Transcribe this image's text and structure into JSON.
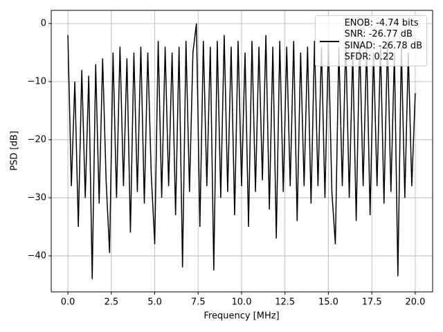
{
  "chart_data": {
    "type": "line",
    "xlabel": "Frequency [MHz]",
    "ylabel": "PSD [dB]",
    "x": [
      0,
      0.2,
      0.4,
      0.6,
      0.8,
      1.0,
      1.2,
      1.4,
      1.6,
      1.8,
      2.0,
      2.2,
      2.4,
      2.6,
      2.8,
      3.0,
      3.2,
      3.4,
      3.6,
      3.8,
      4.0,
      4.2,
      4.4,
      4.6,
      4.8,
      5.0,
      5.2,
      5.4,
      5.6,
      5.8,
      6.0,
      6.2,
      6.4,
      6.6,
      6.8,
      7.0,
      7.2,
      7.4,
      7.6,
      7.8,
      8.0,
      8.2,
      8.4,
      8.6,
      8.8,
      9.0,
      9.2,
      9.4,
      9.6,
      9.8,
      10.0,
      10.2,
      10.4,
      10.6,
      10.8,
      11.0,
      11.2,
      11.4,
      11.6,
      11.8,
      12.0,
      12.2,
      12.4,
      12.6,
      12.8,
      13.0,
      13.2,
      13.4,
      13.6,
      13.8,
      14.0,
      14.2,
      14.4,
      14.6,
      14.8,
      15.0,
      15.2,
      15.4,
      15.6,
      15.8,
      16.0,
      16.2,
      16.4,
      16.6,
      16.8,
      17.0,
      17.2,
      17.4,
      17.6,
      17.8,
      18.0,
      18.2,
      18.4,
      18.6,
      18.8,
      19.0,
      19.2,
      19.4,
      19.6,
      19.8,
      20.0
    ],
    "series": [
      {
        "name": "ENOB: -4.74 bits\nSNR: -26.77 dB\nSINAD: -26.78 dB\nSFDR: 0.22",
        "color": "#000000",
        "values": [
          -2,
          -28,
          -10,
          -35,
          -8,
          -30,
          -9,
          -44,
          -7,
          -31,
          -6,
          -27,
          -39.5,
          -5,
          -30,
          -4,
          -28,
          -6,
          -36,
          -5,
          -29,
          -4,
          -31,
          -5,
          -26,
          -38,
          -3,
          -30,
          -4,
          -28,
          -5,
          -33,
          -4,
          -42,
          -3,
          -29,
          -5,
          0,
          -35,
          -3,
          -28,
          -4,
          -42.5,
          -3,
          -30,
          -2,
          -29,
          -4,
          -33,
          -3,
          -28,
          -5,
          -35,
          -3,
          -29,
          -4,
          -27,
          -2,
          -32,
          -4,
          -37,
          -3,
          -29,
          -4,
          -28,
          -3,
          -34,
          -5,
          -28,
          -4,
          -31,
          -3,
          -28,
          -4,
          -30,
          -3,
          -29,
          -38,
          -4,
          -28,
          -3,
          -30,
          -5,
          -34,
          -3,
          -28,
          -4,
          -33,
          -5,
          -28,
          -4,
          -31,
          -3,
          -29,
          -5,
          -43.5,
          -4,
          -30,
          -5,
          -28,
          -12
        ]
      }
    ],
    "xlim": [
      -0.96,
      21.0
    ],
    "ylim": [
      -46.2,
      2.26
    ],
    "xticks": [
      {
        "value": 0,
        "label": "0.0"
      },
      {
        "value": 2.5,
        "label": "2.5"
      },
      {
        "value": 5,
        "label": "5.0"
      },
      {
        "value": 7.5,
        "label": "7.5"
      },
      {
        "value": 10,
        "label": "10.0"
      },
      {
        "value": 12.5,
        "label": "12.5"
      },
      {
        "value": 15,
        "label": "15.0"
      },
      {
        "value": 17.5,
        "label": "17.5"
      },
      {
        "value": 20,
        "label": "20.0"
      }
    ],
    "yticks": [
      {
        "value": -40,
        "label": "−40"
      },
      {
        "value": -30,
        "label": "−30"
      },
      {
        "value": -20,
        "label": "−20"
      },
      {
        "value": -10,
        "label": "−10"
      },
      0
    ],
    "grid": true,
    "legend": "upper right"
  }
}
